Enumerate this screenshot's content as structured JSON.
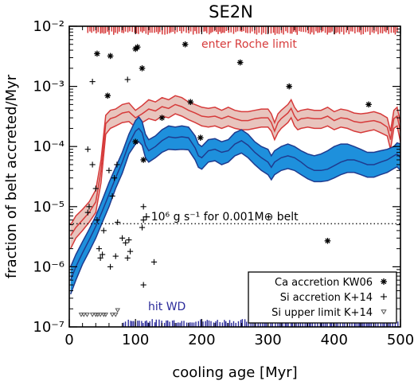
{
  "chart_data": {
    "type": "line",
    "title": "SE2N",
    "xlabel": "cooling age [Myr]",
    "ylabel": "fraction of belt accreted/Myr",
    "xlim": [
      0,
      500
    ],
    "ylim": [
      1e-07,
      0.01
    ],
    "yscale": "log",
    "grid": false,
    "x_ticks": [
      0,
      100,
      200,
      300,
      400,
      500
    ],
    "x_tick_labels": [
      "0",
      "100",
      "200",
      "300",
      "400",
      "500"
    ],
    "y_ticks": [
      1e-07,
      1e-06,
      1e-05,
      0.0001,
      0.001,
      0.01
    ],
    "y_tick_labels": [
      "10⁻⁷",
      "10⁻⁶",
      "10⁻⁵",
      "10⁻⁴",
      "10⁻³",
      "10⁻²"
    ],
    "annotations": {
      "roche": "enter Roche limit",
      "wd": "hit WD",
      "reference_line": "+10⁶ g s⁻¹ for 0.001M⊕ belt"
    },
    "reference_line_value": 5.2e-06,
    "legend": {
      "position": "bottom-right",
      "entries": [
        "Ca accretion KW06",
        "Si accretion K+14",
        "Si upper limit K+14"
      ]
    },
    "colors": {
      "roche": "#d63a3a",
      "roche_fill": "#e8c4bd",
      "wd_line": "#1f3b8f",
      "wd_fill": "#1e90dc",
      "wd_tick": "#2a2a9a"
    },
    "series": [
      {
        "role": "roche-band",
        "x": [
          2,
          10,
          20,
          30,
          40,
          48,
          55,
          62,
          70,
          80,
          90,
          100,
          110,
          120,
          130,
          140,
          150,
          160,
          170,
          180,
          190,
          200,
          210,
          220,
          230,
          240,
          250,
          260,
          270,
          280,
          290,
          300,
          305,
          310,
          315,
          320,
          330,
          335,
          340,
          345,
          350,
          360,
          370,
          380,
          390,
          400,
          410,
          420,
          430,
          440,
          450,
          460,
          470,
          480,
          485,
          490,
          495,
          500
        ],
        "upper": [
          5e-06,
          7e-06,
          9e-06,
          1.2e-05,
          1.9e-05,
          6e-05,
          0.00033,
          0.0004,
          0.00042,
          0.0005,
          0.00053,
          0.0004,
          0.00048,
          0.0006,
          0.00055,
          0.00065,
          0.0006,
          0.0007,
          0.00065,
          0.00055,
          0.0005,
          0.00045,
          0.00043,
          0.00045,
          0.0004,
          0.00045,
          0.0004,
          0.00038,
          0.00038,
          0.0004,
          0.00042,
          0.00042,
          0.00035,
          0.00025,
          0.00035,
          0.0004,
          0.0005,
          0.0006,
          0.00045,
          0.00038,
          0.0004,
          0.00042,
          0.0004,
          0.0004,
          0.00045,
          0.00038,
          0.00042,
          0.0004,
          0.00036,
          0.00035,
          0.00036,
          0.00038,
          0.00035,
          0.0003,
          0.00018,
          0.0004,
          0.00045,
          0.00025
        ],
        "center": [
          3.3e-06,
          4.5e-06,
          6e-06,
          8e-06,
          1.2e-05,
          4e-05,
          0.00024,
          0.00029,
          0.00031,
          0.00036,
          0.00038,
          0.0003,
          0.00035,
          0.00042,
          0.00039,
          0.00046,
          0.00043,
          0.0005,
          0.00046,
          0.0004,
          0.00036,
          0.00032,
          0.00031,
          0.00032,
          0.00029,
          0.00032,
          0.00029,
          0.00027,
          0.00027,
          0.00029,
          0.0003,
          0.0003,
          0.00025,
          0.00018,
          0.00025,
          0.00029,
          0.00036,
          0.00043,
          0.00032,
          0.00027,
          0.00029,
          0.0003,
          0.00029,
          0.00029,
          0.00032,
          0.00027,
          0.0003,
          0.00029,
          0.00026,
          0.00025,
          0.00026,
          0.00027,
          0.00025,
          0.00021,
          0.00013,
          0.00029,
          0.00032,
          0.00018
        ],
        "lower": [
          2e-06,
          3e-06,
          4e-06,
          5.5e-06,
          8e-06,
          2.5e-05,
          0.00016,
          0.0002,
          0.00022,
          0.00025,
          0.00026,
          0.00021,
          0.00025,
          0.00029,
          0.00027,
          0.00032,
          0.0003,
          0.00035,
          0.00032,
          0.00028,
          0.00025,
          0.00022,
          0.00021,
          0.00022,
          0.0002,
          0.00022,
          0.0002,
          0.00019,
          0.00019,
          0.0002,
          0.00021,
          0.00021,
          0.00018,
          0.00013,
          0.00017,
          0.0002,
          0.00025,
          0.0003,
          0.00022,
          0.00019,
          0.0002,
          0.00021,
          0.0002,
          0.0002,
          0.00022,
          0.00019,
          0.00021,
          0.0002,
          0.00018,
          0.00017,
          0.00018,
          0.00019,
          0.00017,
          0.00015,
          9e-05,
          0.0002,
          0.00022,
          0.00012
        ]
      },
      {
        "role": "wd-band",
        "x": [
          2,
          10,
          20,
          30,
          40,
          50,
          60,
          70,
          80,
          90,
          100,
          105,
          110,
          115,
          120,
          130,
          140,
          150,
          160,
          170,
          180,
          190,
          195,
          200,
          210,
          220,
          230,
          240,
          250,
          260,
          270,
          280,
          290,
          300,
          305,
          310,
          320,
          330,
          340,
          350,
          360,
          370,
          380,
          390,
          400,
          410,
          420,
          430,
          440,
          450,
          460,
          470,
          480,
          490,
          495,
          500
        ],
        "upper": [
          1e-06,
          1.6e-06,
          2.6e-06,
          4.2e-06,
          7e-06,
          1.3e-05,
          2.5e-05,
          4.5e-05,
          8e-05,
          0.00016,
          0.00027,
          0.00031,
          0.00026,
          0.00016,
          0.00013,
          0.00015,
          0.00019,
          0.00022,
          0.00021,
          0.00022,
          0.00021,
          0.00015,
          0.00011,
          0.0001,
          0.00013,
          0.000135,
          0.00012,
          0.00013,
          0.00017,
          0.00019,
          0.00016,
          0.00012,
          0.0001,
          9e-05,
          7e-05,
          8.5e-05,
          0.0001,
          0.00011,
          0.0001,
          8.5e-05,
          7.5e-05,
          7e-05,
          7.5e-05,
          8.5e-05,
          0.0001,
          0.00011,
          0.00011,
          0.0001,
          9e-05,
          8e-05,
          8e-05,
          8.5e-05,
          9e-05,
          0.0001,
          0.000115,
          0.00011
        ],
        "center": [
          6e-07,
          1e-06,
          1.7e-06,
          2.8e-06,
          4.7e-06,
          8.5e-06,
          1.6e-05,
          3e-05,
          5.5e-05,
          0.00011,
          0.00018,
          0.0002,
          0.00017,
          0.000105,
          8.5e-05,
          0.0001,
          0.000125,
          0.000145,
          0.00014,
          0.000145,
          0.00014,
          9.5e-05,
          7e-05,
          6.5e-05,
          8.5e-05,
          9e-05,
          8e-05,
          8.5e-05,
          0.00011,
          0.000125,
          0.000105,
          8e-05,
          6.5e-05,
          5.5e-05,
          4.5e-05,
          5.5e-05,
          6.5e-05,
          7e-05,
          6.5e-05,
          5.5e-05,
          4.5e-05,
          4e-05,
          4e-05,
          4.2e-05,
          4.8e-05,
          5.5e-05,
          6e-05,
          6e-05,
          5.5e-05,
          5e-05,
          5e-05,
          5.5e-05,
          6e-05,
          7e-05,
          7.5e-05,
          6.5e-05
        ],
        "lower": [
          3.5e-07,
          6e-07,
          1.1e-06,
          1.8e-06,
          3e-06,
          5.5e-06,
          1e-05,
          2e-05,
          3.6e-05,
          7.5e-05,
          0.00011,
          0.00012,
          0.000105,
          6.5e-05,
          5.5e-05,
          6.5e-05,
          8e-05,
          9e-05,
          8.8e-05,
          9e-05,
          8.8e-05,
          6e-05,
          4.5e-05,
          4.2e-05,
          5.5e-05,
          5.8e-05,
          5e-05,
          5.5e-05,
          7e-05,
          7.8e-05,
          6.5e-05,
          5e-05,
          4e-05,
          3.4e-05,
          2.8e-05,
          3.4e-05,
          4e-05,
          4.3e-05,
          4e-05,
          3.4e-05,
          2.9e-05,
          2.6e-05,
          2.6e-05,
          2.7e-05,
          3e-05,
          3.4e-05,
          3.7e-05,
          3.7e-05,
          3.4e-05,
          3.1e-05,
          3.1e-05,
          3.4e-05,
          3.7e-05,
          4.3e-05,
          4.6e-05,
          4e-05
        ]
      },
      {
        "role": "ca-accretion-kw06",
        "marker": "asterisk",
        "points": [
          [
            42,
            0.0035
          ],
          [
            62,
            0.0032
          ],
          [
            58,
            0.0007
          ],
          [
            100,
            0.0042
          ],
          [
            103,
            0.0045
          ],
          [
            110,
            0.002
          ],
          [
            100,
            0.00012
          ],
          [
            112,
            6e-05
          ],
          [
            140,
            0.0003
          ],
          [
            175,
            0.005
          ],
          [
            183,
            0.00055
          ],
          [
            198,
            0.00014
          ],
          [
            258,
            0.0025
          ],
          [
            332,
            0.001
          ],
          [
            452,
            0.0005
          ],
          [
            390,
            2.7e-06
          ]
        ]
      },
      {
        "role": "si-accretion-k14",
        "marker": "plus",
        "points": [
          [
            35,
            0.0012
          ],
          [
            28,
            9e-05
          ],
          [
            35,
            5e-05
          ],
          [
            30,
            1e-05
          ],
          [
            28,
            8e-06
          ],
          [
            40,
            2e-05
          ],
          [
            42,
            6e-06
          ],
          [
            45,
            2e-06
          ],
          [
            47,
            1.4e-06
          ],
          [
            50,
            1.6e-06
          ],
          [
            52,
            4e-06
          ],
          [
            62,
            1e-06
          ],
          [
            70,
            1.5e-06
          ],
          [
            73,
            5.5e-06
          ],
          [
            80,
            3e-06
          ],
          [
            85,
            2.5e-06
          ],
          [
            88,
            1.4e-06
          ],
          [
            90,
            2.8e-06
          ],
          [
            92,
            1.8e-06
          ],
          [
            65,
            1.5e-05
          ],
          [
            68,
            3e-05
          ],
          [
            72,
            5e-05
          ],
          [
            60,
            4e-05
          ],
          [
            88,
            0.0013
          ],
          [
            110,
            4.5e-06
          ],
          [
            112,
            6e-06
          ],
          [
            112,
            5e-07
          ],
          [
            128,
            1.2e-06
          ],
          [
            112,
            1e-05
          ]
        ]
      },
      {
        "role": "si-upper-limit-k14",
        "marker": "triangle-down",
        "points": [
          [
            18,
            1.6e-07
          ],
          [
            22,
            1.6e-07
          ],
          [
            27,
            1.6e-07
          ],
          [
            35,
            1.6e-07
          ],
          [
            40,
            1.6e-07
          ],
          [
            43,
            1.6e-07
          ],
          [
            47,
            1.6e-07
          ],
          [
            52,
            1.6e-07
          ],
          [
            55,
            1.6e-07
          ],
          [
            65,
            1.6e-07
          ],
          [
            70,
            1.6e-07
          ],
          [
            73,
            1.9e-07
          ]
        ]
      }
    ]
  }
}
